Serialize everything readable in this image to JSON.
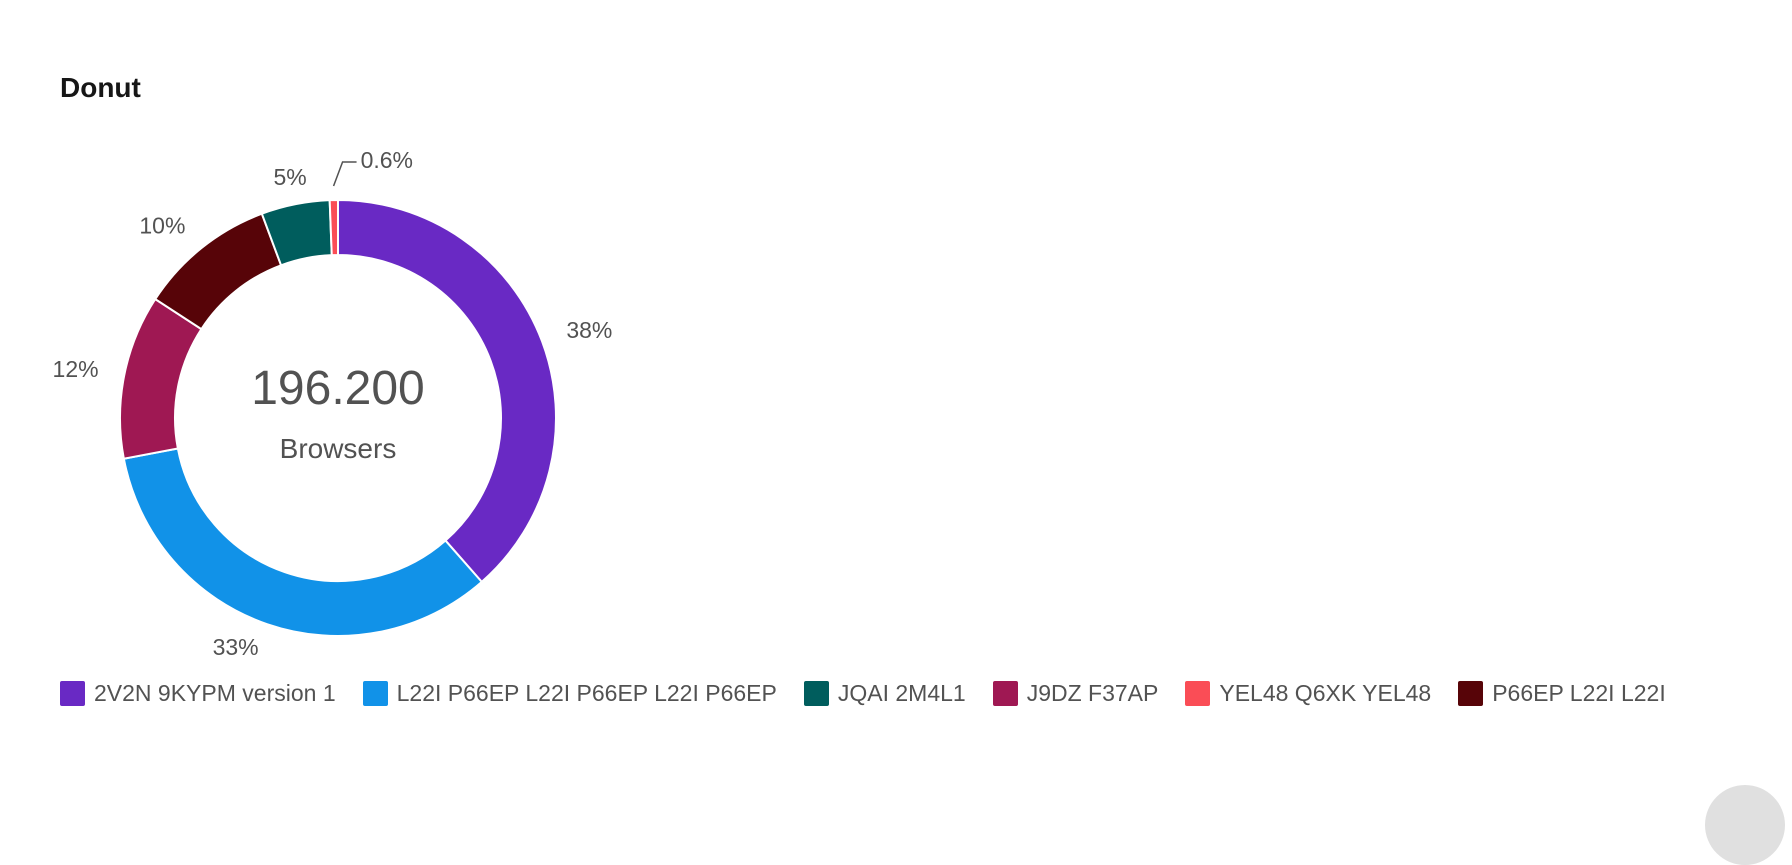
{
  "chart_data": {
    "type": "pie",
    "variant": "donut",
    "title": "Donut",
    "center": {
      "value": "196.200",
      "label": "Browsers"
    },
    "legend_position": "bottom-left",
    "slices": [
      {
        "name": "2V2N 9KYPM version 1",
        "percent": 38,
        "label": "38%",
        "color": "#6929c4"
      },
      {
        "name": "L22I P66EP L22I P66EP L22I P66EP",
        "percent": 33,
        "label": "33%",
        "color": "#1192e8"
      },
      {
        "name": "J9DZ F37AP",
        "percent": 12,
        "label": "12%",
        "color": "#9f1853"
      },
      {
        "name": "P66EP L22I L22I",
        "percent": 10,
        "label": "10%",
        "color": "#570408"
      },
      {
        "name": "JQAI 2M4L1",
        "percent": 5,
        "label": "5%",
        "color": "#005d5d"
      },
      {
        "name": "YEL48 Q6XK YEL48",
        "percent": 0.6,
        "label": "0.6%",
        "color": "#fa4d56"
      }
    ],
    "legend": [
      {
        "label": "2V2N 9KYPM version 1",
        "color": "#6929c4"
      },
      {
        "label": "L22I P66EP L22I P66EP L22I P66EP",
        "color": "#1192e8"
      },
      {
        "label": "JQAI 2M4L1",
        "color": "#005d5d"
      },
      {
        "label": "J9DZ F37AP",
        "color": "#9f1853"
      },
      {
        "label": "YEL48 Q6XK YEL48",
        "color": "#fa4d56"
      },
      {
        "label": "P66EP L22I L22I",
        "color": "#570408"
      }
    ]
  }
}
